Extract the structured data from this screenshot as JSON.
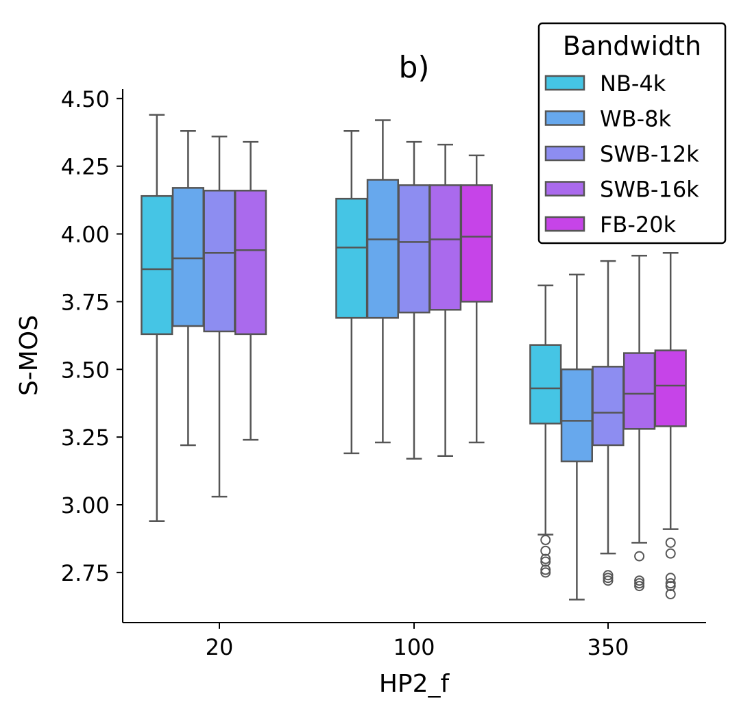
{
  "chart_data": {
    "type": "box",
    "title": "b)",
    "xlabel": "HP2_f",
    "ylabel": "S-MOS",
    "categories": [
      "20",
      "100",
      "350"
    ],
    "ylim": [
      2.565,
      4.535
    ],
    "yticks": [
      2.75,
      3.0,
      3.25,
      3.5,
      3.75,
      4.0,
      4.25,
      4.5
    ],
    "ytick_labels": [
      "2.75",
      "3.00",
      "3.25",
      "3.50",
      "3.75",
      "4.00",
      "4.25",
      "4.50"
    ],
    "grid": false,
    "legend": {
      "title": "Bandwidth",
      "position": "top-right"
    },
    "series": [
      {
        "name": "NB-4k",
        "color": "#45c5e5",
        "boxes": [
          {
            "category": "20",
            "whisker_low": 2.94,
            "q1": 3.63,
            "median": 3.87,
            "q3": 4.14,
            "whisker_high": 4.44,
            "outliers": []
          },
          {
            "category": "100",
            "whisker_low": 3.19,
            "q1": 3.69,
            "median": 3.95,
            "q3": 4.13,
            "whisker_high": 4.38,
            "outliers": []
          },
          {
            "category": "350",
            "whisker_low": 2.89,
            "q1": 3.3,
            "median": 3.43,
            "q3": 3.59,
            "whisker_high": 3.81,
            "outliers": [
              2.87,
              2.83,
              2.8,
              2.79,
              2.76,
              2.75
            ]
          }
        ]
      },
      {
        "name": "WB-8k",
        "color": "#67a8ed",
        "boxes": [
          {
            "category": "20",
            "whisker_low": 3.22,
            "q1": 3.66,
            "median": 3.91,
            "q3": 4.17,
            "whisker_high": 4.38,
            "outliers": []
          },
          {
            "category": "100",
            "whisker_low": 3.23,
            "q1": 3.69,
            "median": 3.98,
            "q3": 4.2,
            "whisker_high": 4.42,
            "outliers": []
          },
          {
            "category": "350",
            "whisker_low": 2.65,
            "q1": 3.16,
            "median": 3.31,
            "q3": 3.5,
            "whisker_high": 3.85,
            "outliers": []
          }
        ]
      },
      {
        "name": "SWB-12k",
        "color": "#8d8df1",
        "boxes": [
          {
            "category": "20",
            "whisker_low": 3.03,
            "q1": 3.64,
            "median": 3.93,
            "q3": 4.16,
            "whisker_high": 4.36,
            "outliers": []
          },
          {
            "category": "100",
            "whisker_low": 3.17,
            "q1": 3.71,
            "median": 3.97,
            "q3": 4.18,
            "whisker_high": 4.34,
            "outliers": []
          },
          {
            "category": "350",
            "whisker_low": 2.82,
            "q1": 3.22,
            "median": 3.34,
            "q3": 3.51,
            "whisker_high": 3.9,
            "outliers": [
              2.74,
              2.73,
              2.72
            ]
          }
        ]
      },
      {
        "name": "SWB-16k",
        "color": "#aa6aed",
        "boxes": [
          {
            "category": "20",
            "whisker_low": 3.24,
            "q1": 3.63,
            "median": 3.94,
            "q3": 4.16,
            "whisker_high": 4.34,
            "outliers": []
          },
          {
            "category": "100",
            "whisker_low": 3.18,
            "q1": 3.72,
            "median": 3.98,
            "q3": 4.18,
            "whisker_high": 4.33,
            "outliers": []
          },
          {
            "category": "350",
            "whisker_low": 2.86,
            "q1": 3.28,
            "median": 3.41,
            "q3": 3.56,
            "whisker_high": 3.92,
            "outliers": [
              2.81,
              2.72,
              2.71,
              2.7
            ]
          }
        ]
      },
      {
        "name": "FB-20k",
        "color": "#c644e8",
        "boxes": [
          {
            "category": "100",
            "whisker_low": 3.23,
            "q1": 3.75,
            "median": 3.99,
            "q3": 4.18,
            "whisker_high": 4.29,
            "outliers": []
          },
          {
            "category": "350",
            "whisker_low": 2.91,
            "q1": 3.29,
            "median": 3.44,
            "q3": 3.57,
            "whisker_high": 3.93,
            "outliers": [
              2.86,
              2.82,
              2.73,
              2.71,
              2.7,
              2.67
            ]
          }
        ]
      }
    ]
  }
}
